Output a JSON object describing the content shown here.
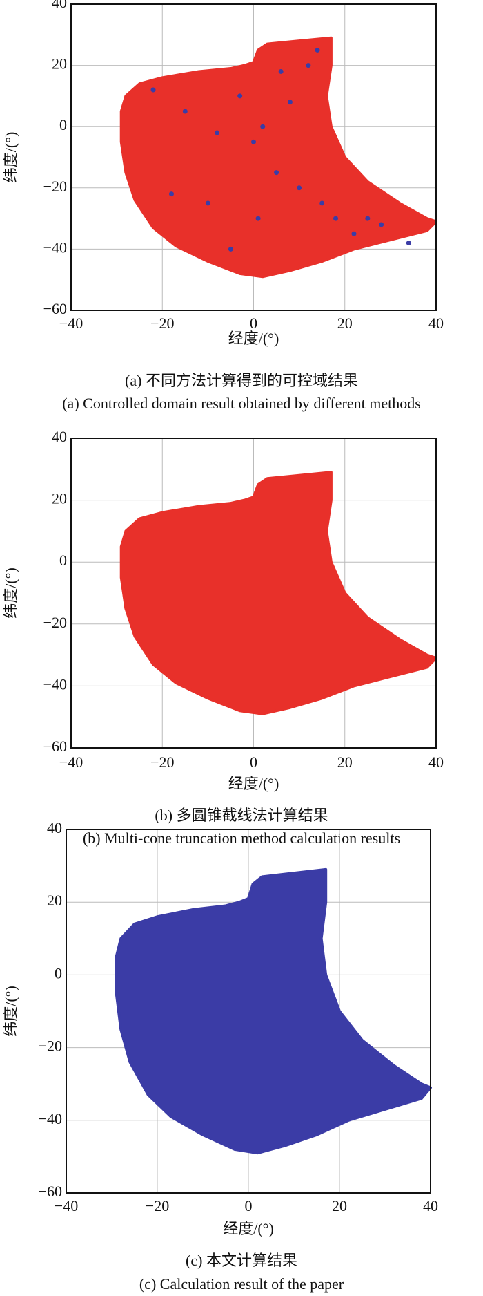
{
  "chart_data": [
    {
      "type": "region",
      "xlabel": "经度/(°)",
      "ylabel": "纬度/(°)",
      "caption": "(a) 不同方法计算得到的可控域结果",
      "caption_en": "(a) Controlled domain result obtained by different methods",
      "xlim": [
        -40,
        40
      ],
      "ylim": [
        -60,
        40
      ],
      "grid": true,
      "xticks": [
        {
          "value": -40,
          "label": "−40"
        },
        {
          "value": -20,
          "label": "−20"
        },
        0,
        20,
        40
      ],
      "yticks": [
        {
          "value": -60,
          "label": "−60"
        },
        {
          "value": -40,
          "label": "−40"
        },
        {
          "value": -20,
          "label": "−20"
        },
        0,
        20,
        40
      ],
      "series": [
        {
          "color": "#e8302a",
          "x": [
            -28,
            -25,
            -20,
            -12,
            -5,
            -2,
            0,
            1,
            3,
            10,
            17,
            17,
            16,
            17,
            20,
            25,
            32,
            38,
            40,
            38,
            30,
            22,
            15,
            8,
            2,
            -3,
            -10,
            -17,
            -22,
            -26,
            -28,
            -29,
            -29
          ],
          "y": [
            10,
            14,
            16,
            18,
            19,
            20,
            21,
            25,
            27,
            28,
            29,
            20,
            10,
            0,
            -10,
            -18,
            -25,
            -30,
            -31,
            -34,
            -37,
            -40,
            -44,
            -47,
            -49,
            -48,
            -44,
            -39,
            -33,
            -24,
            -15,
            -5,
            5
          ]
        }
      ],
      "points": {
        "color": "#3b3ca6",
        "x": [
          -22,
          -15,
          -8,
          -3,
          0,
          2,
          5,
          8,
          12,
          15,
          18,
          22,
          28,
          34,
          -10,
          -5,
          1,
          10,
          -18,
          25,
          14,
          6
        ],
        "y": [
          12,
          5,
          -2,
          10,
          -5,
          0,
          -15,
          8,
          20,
          -25,
          -30,
          -35,
          -32,
          -38,
          -25,
          -40,
          -30,
          -20,
          -22,
          -30,
          25,
          18
        ]
      }
    },
    {
      "type": "region",
      "xlabel": "经度/(°)",
      "ylabel": "纬度/(°)",
      "caption": "(b) 多圆锥截线法计算结果",
      "caption_en": "(b) Multi-cone truncation method calculation results",
      "xlim": [
        -40,
        40
      ],
      "ylim": [
        -60,
        40
      ],
      "grid": true,
      "xticks": [
        {
          "value": -40,
          "label": "−40"
        },
        {
          "value": -20,
          "label": "−20"
        },
        0,
        20,
        40
      ],
      "yticks": [
        {
          "value": -60,
          "label": "−60"
        },
        {
          "value": -40,
          "label": "−40"
        },
        {
          "value": -20,
          "label": "−20"
        },
        0,
        20,
        40
      ],
      "series": [
        {
          "color": "#e8302a",
          "x": [
            -28,
            -25,
            -20,
            -12,
            -5,
            -2,
            0,
            1,
            3,
            10,
            17,
            17,
            16,
            17,
            20,
            25,
            32,
            38,
            40,
            38,
            30,
            22,
            15,
            8,
            2,
            -3,
            -10,
            -17,
            -22,
            -26,
            -28,
            -29,
            -29
          ],
          "y": [
            10,
            14,
            16,
            18,
            19,
            20,
            21,
            25,
            27,
            28,
            29,
            20,
            10,
            0,
            -10,
            -18,
            -25,
            -30,
            -31,
            -34,
            -37,
            -40,
            -44,
            -47,
            -49,
            -48,
            -44,
            -39,
            -33,
            -24,
            -15,
            -5,
            5
          ]
        }
      ]
    },
    {
      "type": "region",
      "xlabel": "经度/(°)",
      "ylabel": "纬度/(°)",
      "caption": "(c) 本文计算结果",
      "caption_en": "(c) Calculation result of the paper",
      "xlim": [
        -40,
        40
      ],
      "ylim": [
        -60,
        40
      ],
      "grid": true,
      "xticks": [
        {
          "value": -40,
          "label": "−40"
        },
        {
          "value": -20,
          "label": "−20"
        },
        0,
        20,
        40
      ],
      "yticks": [
        {
          "value": -60,
          "label": "−60"
        },
        {
          "value": -40,
          "label": "−40"
        },
        {
          "value": -20,
          "label": "−20"
        },
        0,
        20,
        40
      ],
      "series": [
        {
          "color": "#3b3ca6",
          "x": [
            -28,
            -25,
            -20,
            -12,
            -5,
            -2,
            0,
            1,
            3,
            10,
            17,
            17,
            16,
            17,
            20,
            25,
            32,
            38,
            40,
            38,
            30,
            22,
            15,
            8,
            2,
            -3,
            -10,
            -17,
            -22,
            -26,
            -28,
            -29,
            -29
          ],
          "y": [
            10,
            14,
            16,
            18,
            19,
            20,
            21,
            25,
            27,
            28,
            29,
            20,
            10,
            0,
            -10,
            -18,
            -25,
            -30,
            -31,
            -34,
            -37,
            -40,
            -44,
            -47,
            -49,
            -48,
            -44,
            -39,
            -33,
            -24,
            -15,
            -5,
            5
          ]
        }
      ]
    }
  ]
}
